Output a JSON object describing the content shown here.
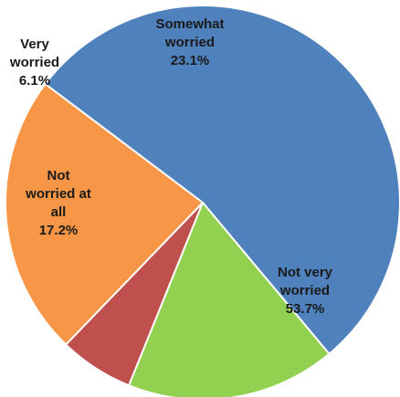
{
  "chart_data": {
    "type": "pie",
    "title": "",
    "start_angle_deg": 307,
    "direction": "clockwise",
    "slices": [
      {
        "label_lines": [
          "Not very",
          "worried",
          "53.7%"
        ],
        "category": "Not very worried",
        "value": 53.7,
        "display_value": "53.7%",
        "color": "#4f81bd"
      },
      {
        "label_lines": [
          "Not",
          "worried at",
          "all",
          "17.2%"
        ],
        "category": "Not worried at all",
        "value": 17.2,
        "display_value": "17.2%",
        "color": "#92d050"
      },
      {
        "label_lines": [
          "Very",
          "worried",
          "6.1%"
        ],
        "category": "Very worried",
        "value": 6.1,
        "display_value": "6.1%",
        "color": "#c0504d"
      },
      {
        "label_lines": [
          "Somewhat",
          "worried",
          "23.1%"
        ],
        "category": "Somewhat worried",
        "value": 23.1,
        "display_value": "23.1%",
        "color": "#f79646"
      }
    ]
  }
}
